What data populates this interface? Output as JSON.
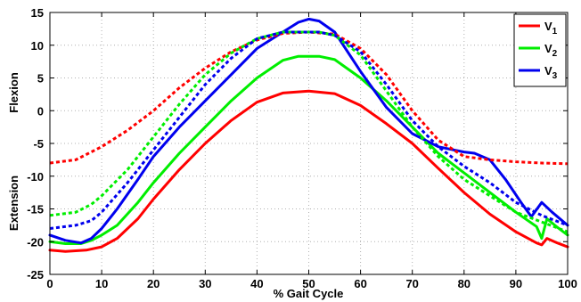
{
  "chart_data": {
    "type": "line",
    "title": "",
    "xlabel": "% Gait Cycle",
    "ylabel_top": "Flexion",
    "ylabel_bottom": "Extension",
    "xlim": [
      0,
      100
    ],
    "ylim": [
      -25,
      15
    ],
    "xticks": [
      "0",
      "10",
      "20",
      "30",
      "40",
      "50",
      "60",
      "70",
      "80",
      "90",
      "100"
    ],
    "yticks": [
      "-25",
      "-20",
      "-15",
      "-10",
      "-5",
      "0",
      "5",
      "10",
      "15"
    ],
    "grid": true,
    "grid_style": "dotted",
    "legend_position": "top-right",
    "legend": [
      {
        "label": "V",
        "subscript": "1",
        "color": "#ff0000"
      },
      {
        "label": "V",
        "subscript": "2",
        "color": "#00ee00"
      },
      {
        "label": "V",
        "subscript": "3",
        "color": "#0000ee"
      }
    ],
    "series": [
      {
        "name": "V1",
        "color": "#ff0000",
        "style": "solid",
        "x": [
          0,
          3,
          7,
          10,
          13,
          17,
          20,
          25,
          30,
          35,
          40,
          45,
          50,
          55,
          60,
          65,
          70,
          75,
          80,
          85,
          90,
          94,
          95,
          96,
          98,
          100
        ],
        "y": [
          -21.3,
          -21.5,
          -21.3,
          -20.8,
          -19.5,
          -16.5,
          -13.5,
          -9,
          -5,
          -1.5,
          1.3,
          2.7,
          3,
          2.6,
          0.8,
          -2,
          -5,
          -8.8,
          -12.5,
          -15.8,
          -18.5,
          -20.2,
          -20.5,
          -19.5,
          -20.2,
          -20.8
        ]
      },
      {
        "name": "V2",
        "color": "#00ee00",
        "style": "solid",
        "x": [
          0,
          3,
          6,
          8,
          10,
          13,
          17,
          20,
          25,
          30,
          35,
          40,
          45,
          48,
          52,
          55,
          60,
          65,
          70,
          75,
          80,
          85,
          90,
          94,
          95,
          96,
          98,
          100
        ],
        "y": [
          -20,
          -20.3,
          -20.3,
          -19.8,
          -19,
          -17.5,
          -14,
          -11,
          -6.5,
          -2.5,
          1.5,
          5,
          7.7,
          8.3,
          8.3,
          7.8,
          5,
          1.5,
          -2.5,
          -6.5,
          -9.5,
          -12.5,
          -15.5,
          -17.7,
          -19.5,
          -16.5,
          -17.8,
          -19
        ]
      },
      {
        "name": "V3",
        "color": "#0000ee",
        "style": "solid",
        "x": [
          0,
          3,
          6,
          8,
          10,
          13,
          17,
          20,
          25,
          30,
          35,
          40,
          45,
          48,
          50,
          52,
          55,
          60,
          65,
          70,
          75,
          78,
          80,
          82,
          85,
          88,
          91,
          93,
          95,
          97,
          100
        ],
        "y": [
          -19,
          -19.8,
          -20.2,
          -19.5,
          -18,
          -15,
          -10.5,
          -7,
          -2.5,
          1.5,
          5.5,
          9.5,
          12,
          13.5,
          14,
          13.7,
          12,
          6,
          0.5,
          -3.5,
          -5.5,
          -6,
          -6.3,
          -6.5,
          -7.5,
          -10.5,
          -14,
          -16.2,
          -14,
          -15.5,
          -17.5
        ]
      },
      {
        "name": "V1 (dotted)",
        "color": "#ff0000",
        "style": "dotted",
        "x": [
          0,
          5,
          10,
          15,
          20,
          25,
          30,
          35,
          40,
          45,
          50,
          55,
          60,
          65,
          70,
          75,
          80,
          85,
          90,
          95,
          100
        ],
        "y": [
          -8,
          -7.5,
          -5.5,
          -3,
          0,
          3.5,
          6.5,
          9,
          10.8,
          11.8,
          12,
          11.7,
          9.5,
          5.5,
          0,
          -4.5,
          -7,
          -7.5,
          -7.8,
          -8,
          -8.1
        ]
      },
      {
        "name": "V2 (dotted)",
        "color": "#00ee00",
        "style": "dotted",
        "x": [
          0,
          5,
          8,
          10,
          15,
          20,
          25,
          30,
          35,
          40,
          45,
          48,
          52,
          55,
          60,
          65,
          70,
          75,
          80,
          85,
          90,
          95,
          100
        ],
        "y": [
          -16,
          -15.5,
          -14.3,
          -13,
          -9,
          -4,
          1,
          5.5,
          8.8,
          11,
          12,
          12,
          12,
          11.5,
          8.5,
          3,
          -2.5,
          -7,
          -10.5,
          -13,
          -15.5,
          -17,
          -18.5
        ]
      },
      {
        "name": "V3 (dotted)",
        "color": "#0000ee",
        "style": "dotted",
        "x": [
          0,
          5,
          8,
          10,
          15,
          20,
          25,
          30,
          35,
          40,
          45,
          48,
          52,
          55,
          60,
          65,
          70,
          75,
          80,
          85,
          90,
          95,
          100
        ],
        "y": [
          -18,
          -17.5,
          -16.8,
          -15.5,
          -11,
          -6,
          -1,
          4,
          8,
          11,
          12,
          12,
          12,
          11.5,
          9,
          4,
          -1.5,
          -5.5,
          -8.5,
          -11,
          -14,
          -16,
          -17.5
        ]
      }
    ]
  }
}
